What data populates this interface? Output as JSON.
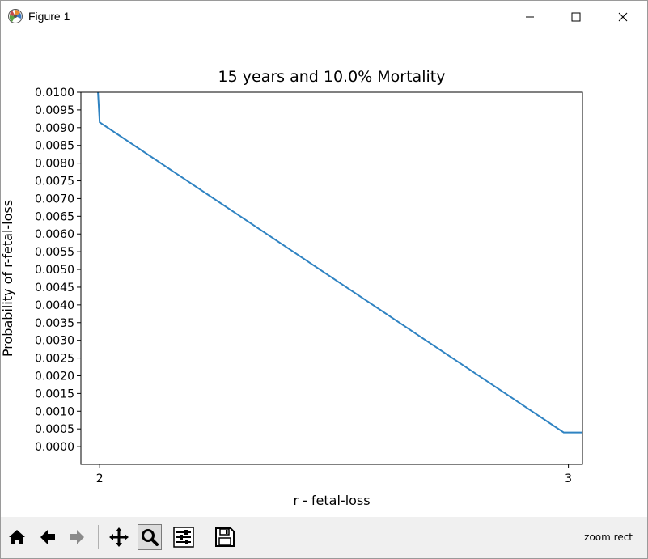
{
  "window": {
    "title": "Figure 1",
    "app_icon": "matplotlib-icon",
    "controls": [
      "minimize-icon",
      "maximize-icon",
      "close-icon"
    ]
  },
  "toolbar": {
    "buttons": [
      "home-icon",
      "back-arrow-icon",
      "forward-arrow-icon",
      "pan-icon",
      "zoom-icon",
      "configure-subplots-icon",
      "save-icon"
    ],
    "active_button": "zoom-icon",
    "status": "zoom rect"
  },
  "chart_data": {
    "type": "line",
    "title": "15 years and 10.0% Mortality",
    "xlabel": "r - fetal-loss",
    "ylabel": "Probability of r-fetal-loss",
    "xlim": [
      1.96,
      3.03
    ],
    "ylim": [
      -0.0005,
      0.01
    ],
    "xticks": [
      2,
      3
    ],
    "xtick_labels": [
      "2",
      "3"
    ],
    "yticks": [
      0.0,
      0.0005,
      0.001,
      0.0015,
      0.002,
      0.0025,
      0.003,
      0.0035,
      0.004,
      0.0045,
      0.005,
      0.0055,
      0.006,
      0.0065,
      0.007,
      0.0075,
      0.008,
      0.0085,
      0.009,
      0.0095,
      0.01
    ],
    "ytick_labels": [
      "0.0000",
      "0.0005",
      "0.0010",
      "0.0015",
      "0.0020",
      "0.0025",
      "0.0030",
      "0.0035",
      "0.0040",
      "0.0045",
      "0.0050",
      "0.0055",
      "0.0060",
      "0.0065",
      "0.0070",
      "0.0075",
      "0.0080",
      "0.0085",
      "0.0090",
      "0.0095",
      "0.0100"
    ],
    "grid": false,
    "color": "#2f83c2",
    "series": [
      {
        "x": [
          1.99,
          2.0,
          2.99,
          3.03
        ],
        "y": [
          0.0115,
          0.00915,
          0.0004,
          0.0004
        ]
      }
    ]
  }
}
